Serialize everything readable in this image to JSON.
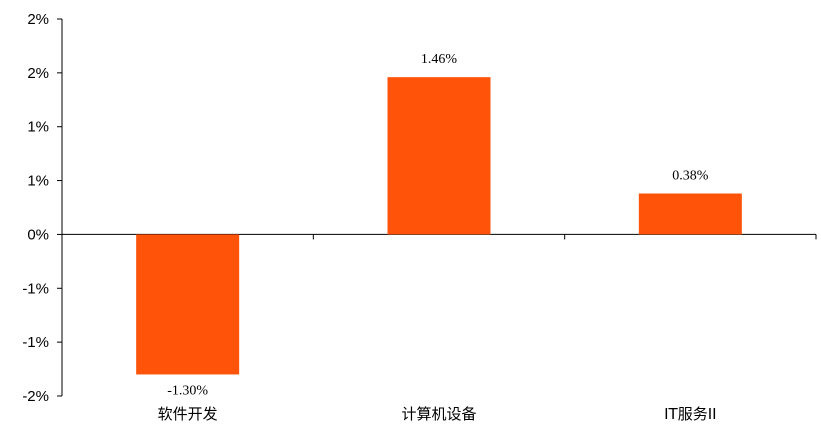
{
  "chart_data": {
    "type": "bar",
    "title": "",
    "xlabel": "",
    "ylabel": "",
    "categories": [
      "软件开发",
      "计算机设备",
      "IT服务II"
    ],
    "values": [
      -1.3,
      1.46,
      0.38
    ],
    "data_labels": [
      "-1.30%",
      "1.46%",
      "0.38%"
    ],
    "ylim": [
      -1.5,
      2.0
    ],
    "y_ticks": [
      2.0,
      1.5,
      1.0,
      0.5,
      0.0,
      -0.5,
      -1.0,
      -1.5
    ],
    "y_tick_labels": [
      "2%",
      "2%",
      "1%",
      "1%",
      "0%",
      "-1%",
      "-1%",
      "-2%"
    ],
    "bar_color": "#FF5309",
    "grid": false,
    "legend": "none"
  }
}
